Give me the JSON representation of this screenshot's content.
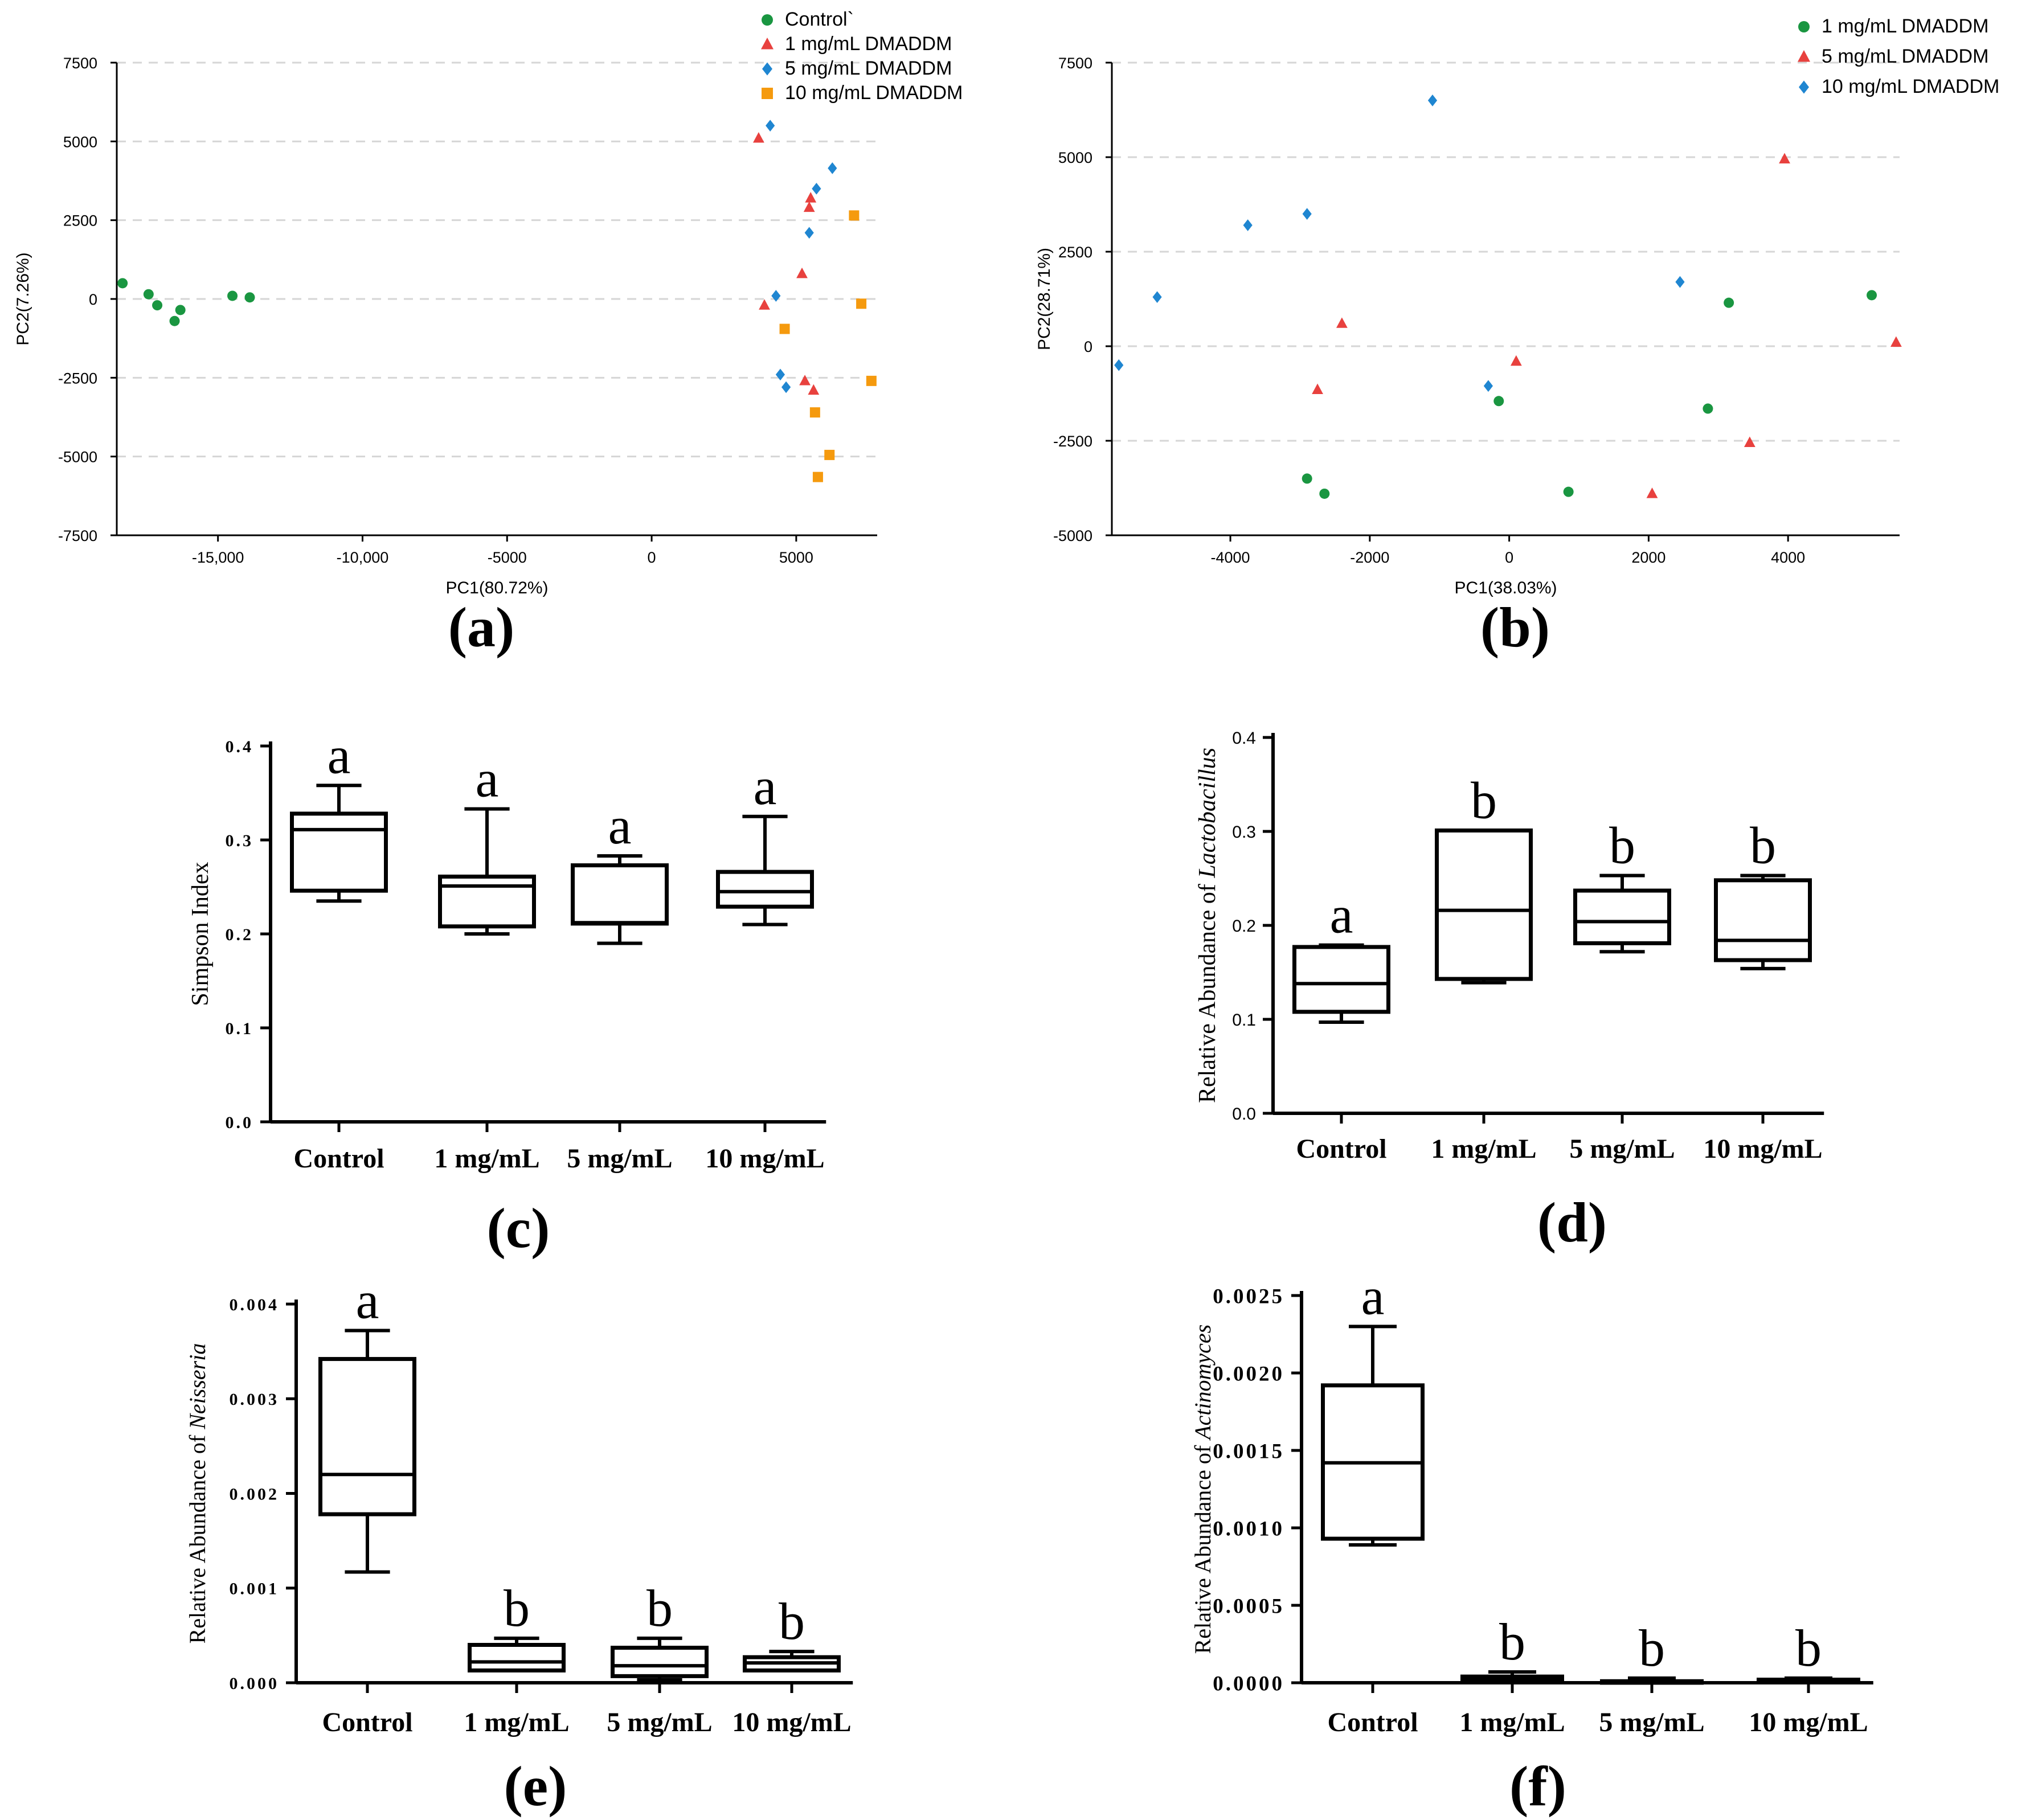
{
  "chart_data": [
    {
      "panel": "(a)",
      "type": "scatter",
      "xlabel": "PC1(80.72%)",
      "ylabel": "PC2(7.26%)",
      "xlim": [
        -18500,
        7800
      ],
      "ylim": [
        -7500,
        7500
      ],
      "xticks": [
        -15000,
        -10000,
        -5000,
        0,
        5000
      ],
      "xtick_labels": [
        "-15,000",
        "-10,000",
        "-5000",
        "0",
        "5000"
      ],
      "yticks": [
        -7500,
        -5000,
        -2500,
        0,
        2500,
        5000,
        7500
      ],
      "ytick_labels": [
        "-7500",
        "-5000",
        "-2500",
        "0",
        "2500",
        "5000",
        "7500"
      ],
      "grid": true,
      "legend_position": "top-right",
      "series": [
        {
          "name": "Control`",
          "marker": "circle",
          "color": "#1a9641",
          "points": [
            [
              -18300,
              500
            ],
            [
              -17400,
              150
            ],
            [
              -17100,
              -200
            ],
            [
              -16500,
              -700
            ],
            [
              -16300,
              -350
            ],
            [
              -14500,
              100
            ],
            [
              -13900,
              50
            ]
          ]
        },
        {
          "name": "1 mg/mL DMADDM",
          "marker": "triangle",
          "color": "#e8413e",
          "points": [
            [
              3700,
              5100
            ],
            [
              3900,
              -200
            ],
            [
              5200,
              800
            ],
            [
              5300,
              -2600
            ],
            [
              5450,
              2900
            ],
            [
              5500,
              3200
            ],
            [
              5600,
              -2900
            ]
          ]
        },
        {
          "name": "5 mg/mL DMADDM",
          "marker": "diamond",
          "color": "#1f86d1",
          "points": [
            [
              4100,
              5500
            ],
            [
              4300,
              100
            ],
            [
              4450,
              -2400
            ],
            [
              4650,
              -2800
            ],
            [
              5450,
              2100
            ],
            [
              5700,
              3500
            ],
            [
              6250,
              4150
            ]
          ]
        },
        {
          "name": "10 mg/mL DMADDM",
          "marker": "square",
          "color": "#f59a0e",
          "points": [
            [
              4600,
              -950
            ],
            [
              5650,
              -3600
            ],
            [
              5750,
              -5650
            ],
            [
              6150,
              -4950
            ],
            [
              7000,
              2650
            ],
            [
              7250,
              -150
            ],
            [
              7600,
              -2600
            ]
          ]
        }
      ]
    },
    {
      "panel": "(b)",
      "type": "scatter",
      "xlabel": "PC1(38.03%)",
      "ylabel": "PC2(28.71%)",
      "xlim": [
        -5700,
        5600
      ],
      "ylim": [
        -5000,
        7500
      ],
      "xticks": [
        -4000,
        -2000,
        0,
        2000,
        4000
      ],
      "xtick_labels": [
        "-4000",
        "-2000",
        "0",
        "2000",
        "4000"
      ],
      "yticks": [
        -5000,
        -2500,
        0,
        2500,
        5000,
        7500
      ],
      "ytick_labels": [
        "-5000",
        "-2500",
        "0",
        "2500",
        "5000",
        "7500"
      ],
      "grid": true,
      "legend_position": "top-right",
      "series": [
        {
          "name": "1 mg/mL DMADDM",
          "marker": "circle",
          "color": "#1a9641",
          "points": [
            [
              -2900,
              -3500
            ],
            [
              -2650,
              -3900
            ],
            [
              -150,
              -1450
            ],
            [
              850,
              -3850
            ],
            [
              2850,
              -1650
            ],
            [
              3150,
              1150
            ],
            [
              5200,
              1350
            ]
          ]
        },
        {
          "name": "5 mg/mL DMADDM",
          "marker": "triangle",
          "color": "#e8413e",
          "points": [
            [
              -2750,
              -1150
            ],
            [
              -2400,
              600
            ],
            [
              100,
              -400
            ],
            [
              2050,
              -3900
            ],
            [
              3450,
              -2550
            ],
            [
              3950,
              4950
            ],
            [
              5550,
              100
            ]
          ]
        },
        {
          "name": "10 mg/mL DMADDM",
          "marker": "diamond",
          "color": "#1f86d1",
          "points": [
            [
              -5600,
              -500
            ],
            [
              -5050,
              1300
            ],
            [
              -3750,
              3200
            ],
            [
              -2900,
              3500
            ],
            [
              -1100,
              6500
            ],
            [
              -300,
              -1050
            ],
            [
              2450,
              1700
            ]
          ]
        }
      ]
    },
    {
      "panel": "(c)",
      "type": "box",
      "ylabel": "Simpson Index",
      "ylim": [
        0,
        0.4
      ],
      "yticks": [
        0.0,
        0.1,
        0.2,
        0.3,
        0.4
      ],
      "ytick_labels": [
        "0.0",
        "0.1",
        "0.2",
        "0.3",
        "0.4"
      ],
      "categories": [
        "Control",
        "1 mg/mL",
        "5 mg/mL",
        "10 mg/mL"
      ],
      "boxes": [
        {
          "min": 0.235,
          "q1": 0.246,
          "median": 0.311,
          "q3": 0.328,
          "max": 0.358
        },
        {
          "min": 0.2,
          "q1": 0.208,
          "median": 0.251,
          "q3": 0.261,
          "max": 0.333
        },
        {
          "min": 0.19,
          "q1": 0.211,
          "median": 0.212,
          "q3": 0.273,
          "max": 0.283
        },
        {
          "min": 0.21,
          "q1": 0.229,
          "median": 0.245,
          "q3": 0.266,
          "max": 0.325
        }
      ],
      "letters": [
        "a",
        "a",
        "a",
        "a"
      ]
    },
    {
      "panel": "(d)",
      "type": "box",
      "ylabel_prefix": "Relative Abundance of ",
      "ylabel_taxon": "Lactobacillus",
      "ylim": [
        0,
        0.4
      ],
      "yticks": [
        0.0,
        0.1,
        0.2,
        0.3,
        0.4
      ],
      "ytick_labels": [
        "0.0",
        "0.1",
        "0.2",
        "0.3",
        "0.4"
      ],
      "categories": [
        "Control",
        "1 mg/mL",
        "5 mg/mL",
        "10 mg/mL"
      ],
      "boxes": [
        {
          "min": 0.097,
          "q1": 0.108,
          "median": 0.138,
          "q3": 0.177,
          "max": 0.179
        },
        {
          "min": 0.139,
          "q1": 0.143,
          "median": 0.216,
          "q3": 0.301,
          "max": 0.301
        },
        {
          "min": 0.172,
          "q1": 0.181,
          "median": 0.204,
          "q3": 0.237,
          "max": 0.253
        },
        {
          "min": 0.154,
          "q1": 0.163,
          "median": 0.184,
          "q3": 0.248,
          "max": 0.253
        }
      ],
      "letters": [
        "a",
        "b",
        "b",
        "b"
      ]
    },
    {
      "panel": "(e)",
      "type": "box",
      "ylabel_prefix": "Relative Abundance of ",
      "ylabel_taxon": "Neisseria",
      "ylim": [
        0,
        0.004
      ],
      "yticks": [
        0.0,
        0.001,
        0.002,
        0.003,
        0.004
      ],
      "ytick_labels": [
        "0.000",
        "0.001",
        "0.002",
        "0.003",
        "0.004"
      ],
      "categories": [
        "Control",
        "1 mg/mL",
        "5 mg/mL",
        "10 mg/mL"
      ],
      "boxes": [
        {
          "min": 0.00117,
          "q1": 0.00178,
          "median": 0.0022,
          "q3": 0.00342,
          "max": 0.00372
        },
        {
          "min": 0.00013,
          "q1": 0.00013,
          "median": 0.00022,
          "q3": 0.0004,
          "max": 0.00047
        },
        {
          "min": 3e-05,
          "q1": 7e-05,
          "median": 0.00018,
          "q3": 0.00037,
          "max": 0.00047
        },
        {
          "min": 0.00013,
          "q1": 0.00013,
          "median": 0.00021,
          "q3": 0.00027,
          "max": 0.00033
        }
      ],
      "letters": [
        "a",
        "b",
        "b",
        "b"
      ]
    },
    {
      "panel": "(f)",
      "type": "box",
      "ylabel_prefix": "Relative Abundance of ",
      "ylabel_taxon": "Actinomyces",
      "ylim": [
        0,
        0.0025
      ],
      "yticks": [
        0.0,
        0.0005,
        0.001,
        0.0015,
        0.002,
        0.0025
      ],
      "ytick_labels": [
        "0.0000",
        "0.0005",
        "0.0010",
        "0.0015",
        "0.0020",
        "0.0025"
      ],
      "categories": [
        "Control",
        "1 mg/mL",
        "5 mg/mL",
        "10 mg/mL"
      ],
      "boxes": [
        {
          "min": 0.00089,
          "q1": 0.00093,
          "median": 0.00142,
          "q3": 0.00192,
          "max": 0.0023
        },
        {
          "min": 0.0,
          "q1": 5e-06,
          "median": 2e-05,
          "q3": 4e-05,
          "max": 7e-05
        },
        {
          "min": 0.0,
          "q1": 0.0,
          "median": 5e-06,
          "q3": 1e-05,
          "max": 3e-05
        },
        {
          "min": 0.0,
          "q1": 5e-06,
          "median": 1e-05,
          "q3": 2e-05,
          "max": 3e-05
        }
      ],
      "letters": [
        "a",
        "b",
        "b",
        "b"
      ]
    }
  ]
}
